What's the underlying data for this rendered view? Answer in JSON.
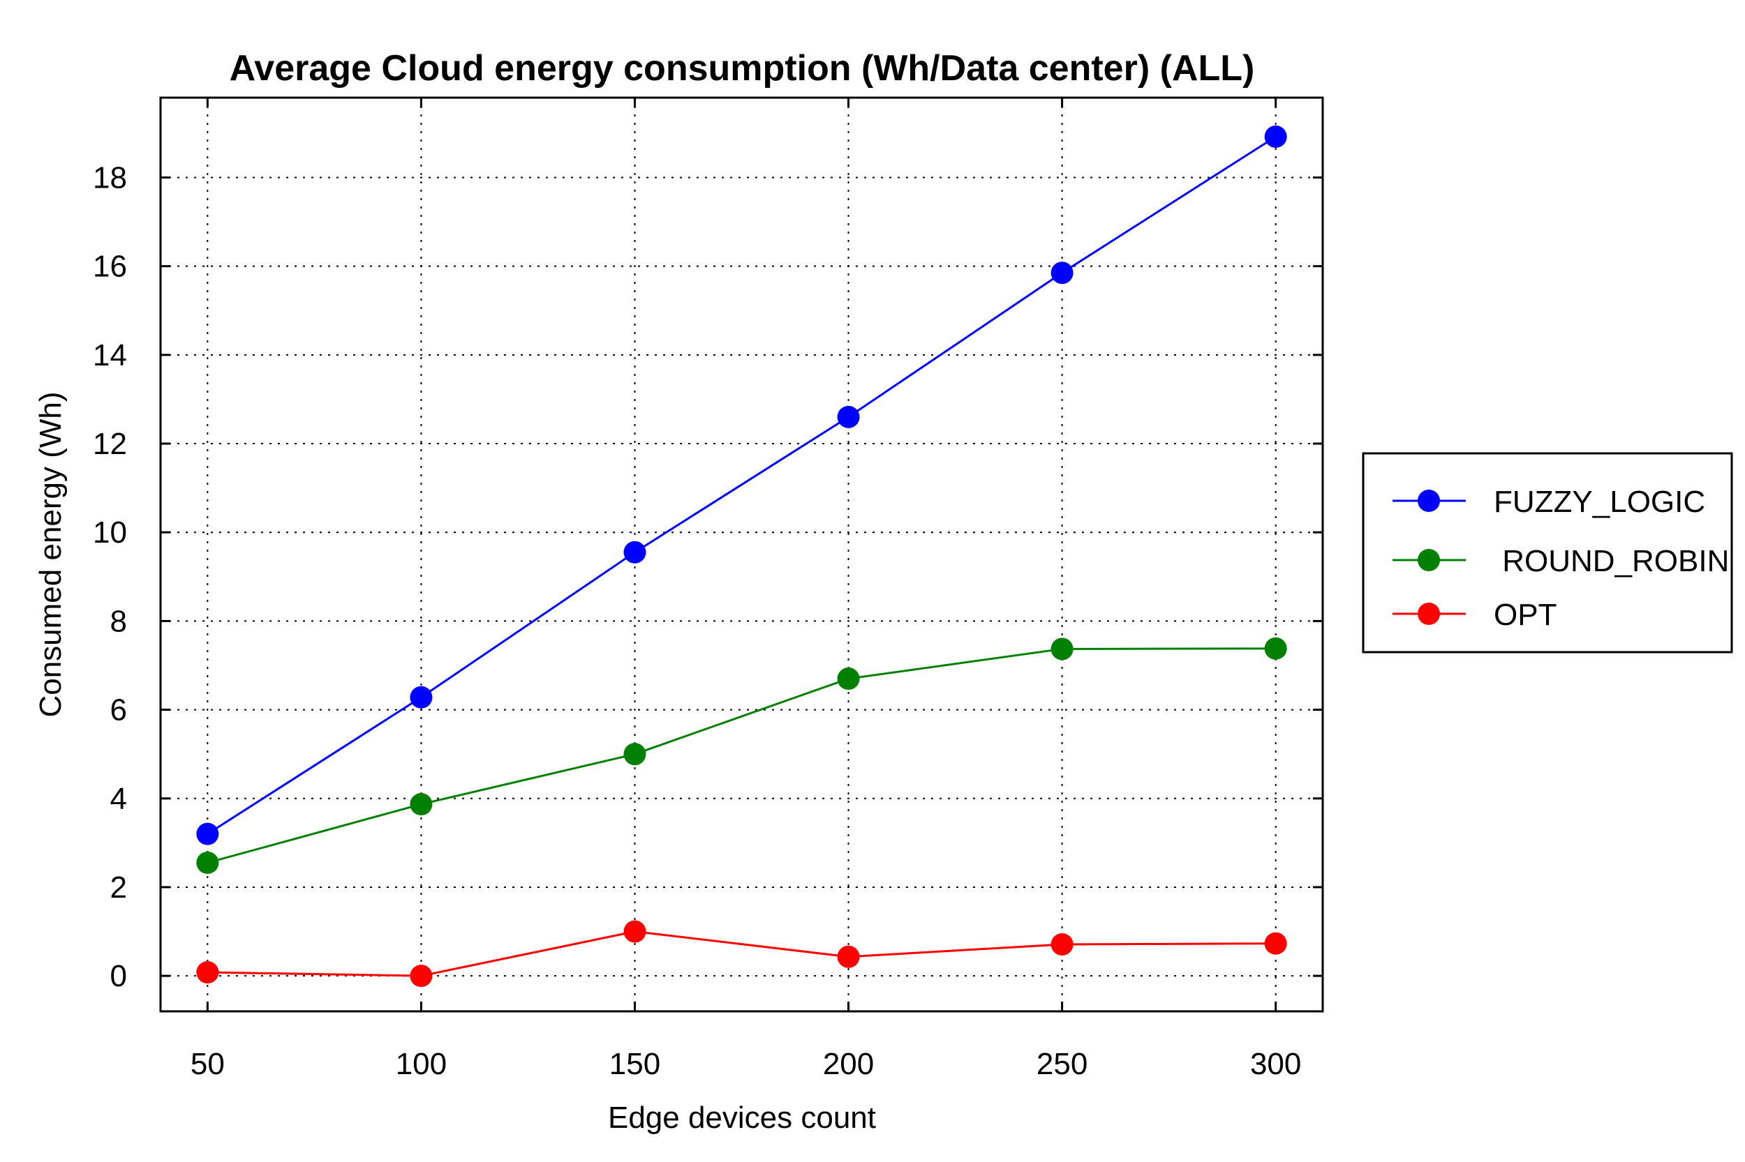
{
  "chart_data": {
    "type": "line",
    "title": "Average Cloud energy consumption (Wh/Data center) (ALL)",
    "xlabel": "Edge devices count",
    "ylabel": "Consumed energy (Wh)",
    "x": [
      50,
      100,
      150,
      200,
      250,
      300
    ],
    "xticks": [
      50,
      100,
      150,
      200,
      250,
      300
    ],
    "yticks": [
      0,
      2,
      4,
      6,
      8,
      10,
      12,
      14,
      16,
      18
    ],
    "xlim": [
      39,
      311
    ],
    "ylim": [
      -0.8,
      19.8
    ],
    "grid": true,
    "legend_position": "right",
    "series": [
      {
        "name": "FUZZY_LOGIC",
        "color": "#0000ff",
        "values": [
          3.2,
          6.28,
          9.55,
          12.6,
          15.85,
          18.92
        ]
      },
      {
        "name": " ROUND_ROBIN",
        "color": "#008000",
        "values": [
          2.55,
          3.87,
          5.0,
          6.7,
          7.37,
          7.38
        ]
      },
      {
        "name": "OPT",
        "color": "#ff0000",
        "values": [
          0.08,
          0.0,
          1.0,
          0.43,
          0.71,
          0.73
        ]
      }
    ]
  }
}
